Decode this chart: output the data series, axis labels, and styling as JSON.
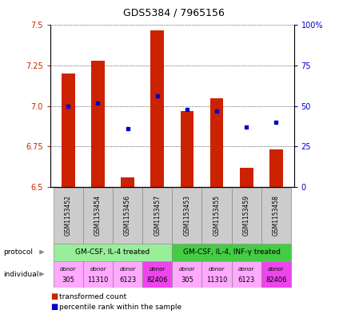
{
  "title": "GDS5384 / 7965156",
  "samples": [
    "GSM1153452",
    "GSM1153454",
    "GSM1153456",
    "GSM1153457",
    "GSM1153453",
    "GSM1153455",
    "GSM1153459",
    "GSM1153458"
  ],
  "transformed_counts": [
    7.2,
    7.28,
    6.56,
    7.47,
    6.97,
    7.05,
    6.62,
    6.73
  ],
  "percentile_ranks": [
    50,
    52,
    36,
    56,
    48,
    47,
    37,
    40
  ],
  "ylim_left": [
    6.5,
    7.5
  ],
  "ylim_right": [
    0,
    100
  ],
  "yticks_left": [
    6.5,
    6.75,
    7.0,
    7.25,
    7.5
  ],
  "yticks_right": [
    0,
    25,
    50,
    75,
    100
  ],
  "bar_color": "#cc2200",
  "dot_color": "#0000cc",
  "bar_bottom": 6.5,
  "individuals": [
    "305",
    "11310",
    "6123",
    "82406",
    "305",
    "11310",
    "6123",
    "82406"
  ],
  "individual_colors": [
    "#ffaaff",
    "#ffaaff",
    "#ffaaff",
    "#ee44ee",
    "#ffaaff",
    "#ffaaff",
    "#ffaaff",
    "#ee44ee"
  ],
  "bg_color": "#ffffff",
  "tick_label_color_left": "#cc2200",
  "tick_label_color_right": "#0000cc",
  "grid_color": "#000000",
  "sample_bg_color": "#cccccc",
  "protocol1_label": "GM-CSF, IL-4 treated",
  "protocol2_label": "GM-CSF, IL-4, INF-γ treated",
  "protocol1_color": "#99ee99",
  "protocol2_color": "#44cc44",
  "legend_label1": "transformed count",
  "legend_label2": "percentile rank within the sample"
}
